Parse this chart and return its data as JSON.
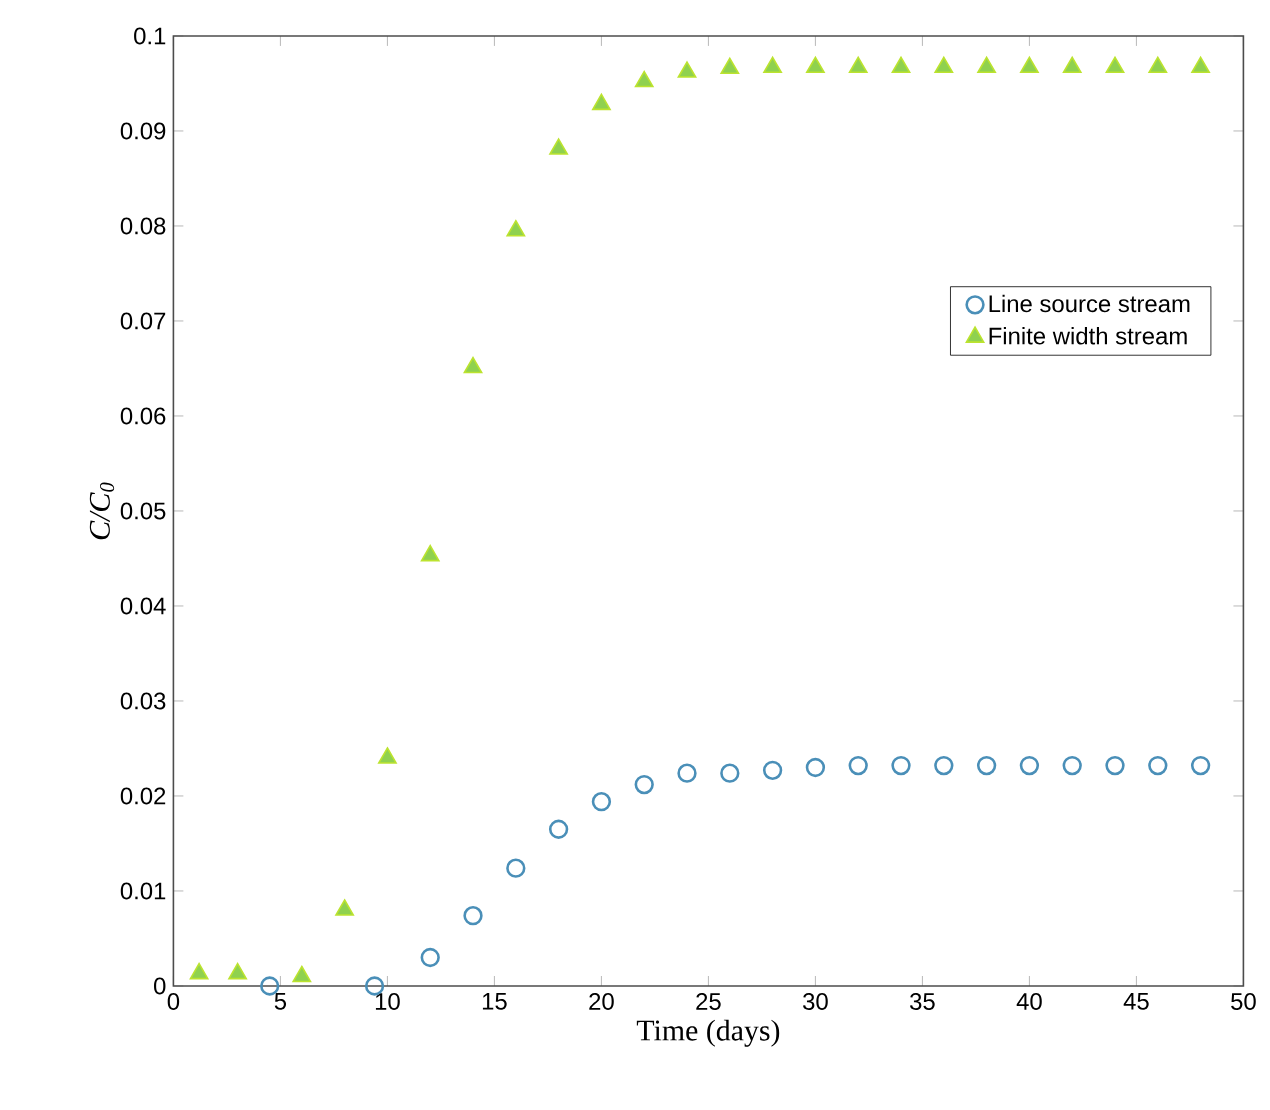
{
  "chart_data": {
    "type": "scatter",
    "xlabel": "Time (days)",
    "ylabel": "C/C$_{0}$",
    "xlim": [
      0,
      50
    ],
    "ylim": [
      0,
      0.1
    ],
    "xticks": [
      0,
      5,
      10,
      15,
      20,
      25,
      30,
      35,
      40,
      45,
      50
    ],
    "yticks": [
      0,
      0.01,
      0.02,
      0.03,
      0.04,
      0.05,
      0.06,
      0.07,
      0.08,
      0.09,
      0.1
    ],
    "legend": "right",
    "grid": false,
    "series": [
      {
        "name": "Line source stream",
        "color": "#4a8fb8",
        "marker": "circle",
        "x": [
          4.5,
          9.4,
          12,
          14,
          16,
          18,
          20,
          22,
          24,
          26,
          28,
          30,
          32,
          34,
          36,
          38,
          40,
          42,
          44,
          46,
          48
        ],
        "values": [
          0,
          0,
          0.003,
          0.0074,
          0.0124,
          0.0165,
          0.0194,
          0.0212,
          0.0224,
          0.0224,
          0.0227,
          0.023,
          0.0232,
          0.0232,
          0.0232,
          0.0232,
          0.0232,
          0.0232,
          0.0232,
          0.0232,
          0.0232
        ]
      },
      {
        "name": "Finite width stream",
        "color": "#8fd14f",
        "marker": "triangle",
        "x": [
          1.2,
          3,
          6,
          8,
          10,
          12,
          14,
          16,
          18,
          20,
          22,
          24,
          26,
          28,
          30,
          32,
          34,
          36,
          38,
          40,
          42,
          44,
          46,
          48
        ],
        "values": [
          0.0013,
          0.0013,
          0.001,
          0.008,
          0.024,
          0.0453,
          0.0651,
          0.0795,
          0.0881,
          0.0928,
          0.0952,
          0.0962,
          0.0966,
          0.0967,
          0.0967,
          0.0967,
          0.0967,
          0.0967,
          0.0967,
          0.0967,
          0.0967,
          0.0967,
          0.0967,
          0.0967
        ]
      }
    ]
  }
}
